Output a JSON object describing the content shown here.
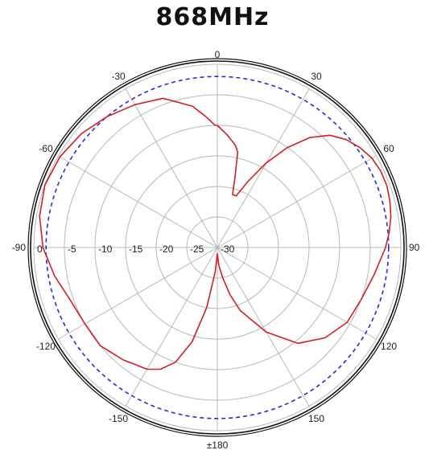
{
  "colors": {
    "pattern": "#d21f26",
    "reference": "#2b2bd6",
    "outer_ring": "#111111",
    "grid": "#b8b8b8"
  },
  "chart_data": {
    "type": "polar-line",
    "title": "868MHz",
    "angle_labels": [
      {
        "deg": 0,
        "text": "0"
      },
      {
        "deg": 30,
        "text": "30"
      },
      {
        "deg": 60,
        "text": "60"
      },
      {
        "deg": 90,
        "text": "90"
      },
      {
        "deg": 120,
        "text": "120"
      },
      {
        "deg": 150,
        "text": "150"
      },
      {
        "deg": 180,
        "text": "±180"
      },
      {
        "deg": -150,
        "text": "-150"
      },
      {
        "deg": -120,
        "text": "-120"
      },
      {
        "deg": -90,
        "text": "-90"
      },
      {
        "deg": -60,
        "text": "-60"
      },
      {
        "deg": -30,
        "text": "-30"
      }
    ],
    "radial_ticks": [
      "0",
      "-5",
      "-10",
      "-15",
      "-20",
      "-25",
      "-30"
    ],
    "r_range": [
      -30,
      0
    ],
    "reference_level": -2,
    "series": [
      {
        "style": "solid",
        "points": [
          [
            0,
            -10
          ],
          [
            5,
            -11.5
          ],
          [
            10,
            -13
          ],
          [
            12,
            -14
          ],
          [
            14,
            -18
          ],
          [
            16,
            -21
          ],
          [
            20,
            -21
          ],
          [
            25,
            -18
          ],
          [
            30,
            -14
          ],
          [
            35,
            -10
          ],
          [
            40,
            -6.5
          ],
          [
            45,
            -4
          ],
          [
            50,
            -2.5
          ],
          [
            55,
            -1.5
          ],
          [
            60,
            -0.8
          ],
          [
            65,
            -0.5
          ],
          [
            70,
            -0.5
          ],
          [
            75,
            -0.8
          ],
          [
            80,
            -1.2
          ],
          [
            85,
            -1.8
          ],
          [
            90,
            -2.5
          ],
          [
            100,
            -4
          ],
          [
            110,
            -5
          ],
          [
            120,
            -5.5
          ],
          [
            130,
            -7
          ],
          [
            140,
            -9.5
          ],
          [
            150,
            -14
          ],
          [
            160,
            -19
          ],
          [
            165,
            -22
          ],
          [
            170,
            -25
          ],
          [
            175,
            -27
          ],
          [
            180,
            -29
          ],
          [
            185,
            -26
          ],
          [
            190,
            -20
          ],
          [
            195,
            -14
          ],
          [
            200,
            -10
          ],
          [
            205,
            -8
          ],
          [
            210,
            -7
          ],
          [
            220,
            -6
          ],
          [
            230,
            -5
          ],
          [
            240,
            -5
          ],
          [
            250,
            -4.5
          ],
          [
            260,
            -3
          ],
          [
            270,
            -1.5
          ],
          [
            280,
            -0.5
          ],
          [
            290,
            0
          ],
          [
            300,
            -0.3
          ],
          [
            310,
            -1
          ],
          [
            320,
            -2
          ],
          [
            330,
            -3
          ],
          [
            340,
            -4
          ],
          [
            350,
            -6.5
          ],
          [
            355,
            -8.5
          ],
          [
            359,
            -10
          ]
        ]
      }
    ]
  }
}
